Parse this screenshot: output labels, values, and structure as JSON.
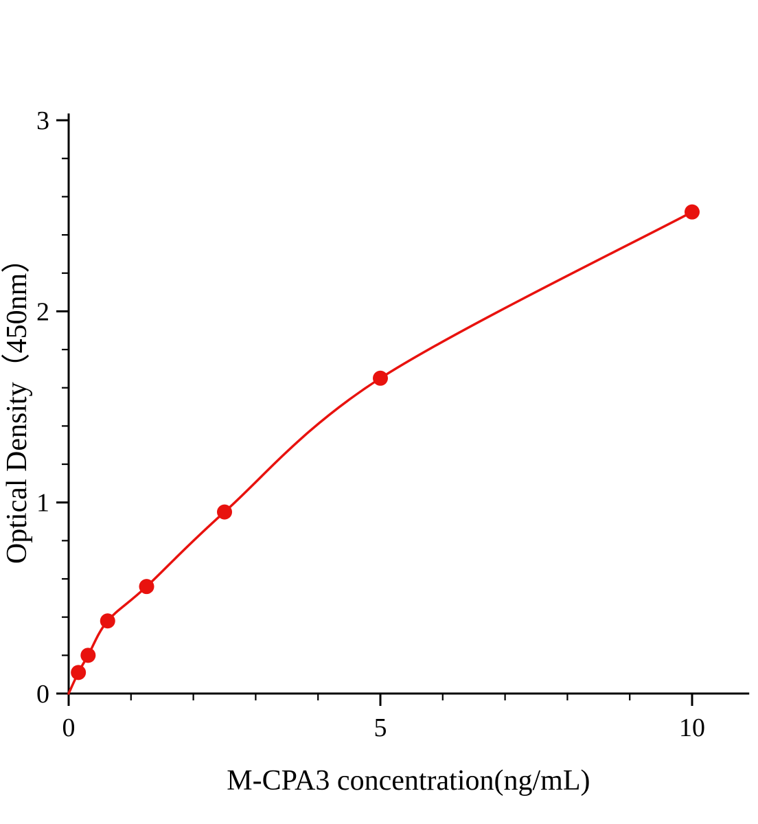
{
  "figure": {
    "xlabel": "M-CPA3 concentration(ng/mL)",
    "ylabel": "Optical Density（450nm）"
  },
  "chart_data": {
    "type": "scatter",
    "title": "",
    "xlabel": "M-CPA3 concentration(ng/mL)",
    "ylabel": "Optical Density（450nm）",
    "x": [
      0.156,
      0.312,
      0.625,
      1.25,
      2.5,
      5,
      10
    ],
    "y": [
      0.11,
      0.2,
      0.38,
      0.56,
      0.95,
      1.65,
      2.52
    ],
    "fit_curve_through_origin": true,
    "xlim": [
      0,
      10.9
    ],
    "ylim": [
      0,
      3.03
    ],
    "x_major_ticks": [
      0,
      5,
      10
    ],
    "x_minor_ticks": [
      1,
      2,
      3,
      4,
      6,
      7,
      8,
      9
    ],
    "y_major_ticks": [
      0,
      1,
      2,
      3
    ],
    "y_minor_ticks": [
      0.2,
      0.4,
      0.6,
      0.8,
      1.2,
      1.4,
      1.6,
      1.8,
      2.2,
      2.4,
      2.6,
      2.8
    ],
    "grid": false,
    "legend": null,
    "line_color": "#e8120e",
    "marker_color": "#e8120e",
    "axis_color": "#000000",
    "tick_label_color": "#000000"
  }
}
